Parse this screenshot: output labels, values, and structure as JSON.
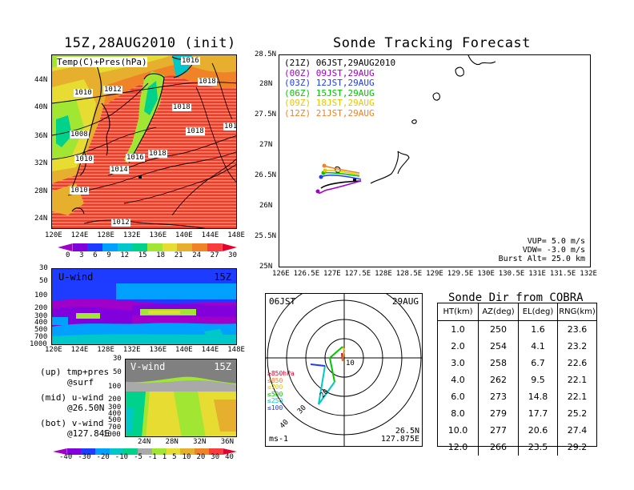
{
  "left_top": {
    "title": "15Z,28AUG2010 (init)",
    "label": "Temp(C)+Pres(hPa)",
    "yticks": [
      "44N",
      "40N",
      "36N",
      "32N",
      "28N",
      "24N"
    ],
    "xticks": [
      "120E",
      "124E",
      "128E",
      "132E",
      "136E",
      "140E",
      "144E",
      "148E"
    ],
    "isobars": [
      "1016",
      "1018",
      "1010",
      "1012",
      "1018",
      "101",
      "1008",
      "1018",
      "1010",
      "1016",
      "1018",
      "1014",
      "1010",
      "1012"
    ]
  },
  "temp_colorbar": {
    "labels": [
      "0",
      "3",
      "6",
      "9",
      "12",
      "15",
      "18",
      "21",
      "24",
      "27",
      "30"
    ],
    "colors": [
      "#a000c8",
      "#8200dc",
      "#1e3cff",
      "#00a0ff",
      "#00c8c8",
      "#00d28c",
      "#a0e632",
      "#e6dc32",
      "#e6af2d",
      "#f08228",
      "#fa3c3c",
      "#e6002a"
    ]
  },
  "u_wind": {
    "label": "U-wind",
    "time": "15Z",
    "yticks": [
      "30",
      "50",
      "100",
      "200",
      "300",
      "400",
      "500",
      "700",
      "1000"
    ],
    "xticks": [
      "120E",
      "124E",
      "128E",
      "132E",
      "136E",
      "140E",
      "144E",
      "148E"
    ]
  },
  "v_wind": {
    "label": "V-wind",
    "time": "15Z",
    "yticks": [
      "30",
      "50",
      "100",
      "200",
      "300",
      "400",
      "500",
      "700",
      "1000"
    ],
    "xticks": [
      "24N",
      "28N",
      "32N",
      "36N"
    ]
  },
  "panel_legend": {
    "up": "(up) tmp+pres",
    "up2": "@surf",
    "mid": "(mid) u-wind",
    "mid2": "@26.50N",
    "bot": "(bot) v-wind",
    "bot2": "@127.84E"
  },
  "wind_colorbar": {
    "labels": [
      "-40",
      "-30",
      "-20",
      "-10",
      "-5",
      "-1",
      "1",
      "5",
      "10",
      "20",
      "30",
      "40"
    ],
    "colors": [
      "#a000c8",
      "#8200dc",
      "#1e3cff",
      "#00a0ff",
      "#00c8c8",
      "#00d28c",
      "#a9a9a9",
      "#a0e632",
      "#e6dc32",
      "#e6af2d",
      "#f08228",
      "#fa3c3c",
      "#e6002a"
    ]
  },
  "track": {
    "title": "Sonde Tracking Forecast",
    "yticks": [
      "28.5N",
      "28N",
      "27.5N",
      "27N",
      "26.5N",
      "26N",
      "25.5N",
      "25N"
    ],
    "xticks": [
      "126E",
      "126.5E",
      "127E",
      "127.5E",
      "128E",
      "128.5E",
      "129E",
      "129.5E",
      "130E",
      "130.5E",
      "131E",
      "131.5E",
      "132E"
    ],
    "legend": [
      {
        "code": "(21Z)",
        "time": "06JST,29AUG2010",
        "color": "#000000"
      },
      {
        "code": "(00Z)",
        "time": "09JST,29AUG",
        "color": "#a000c8"
      },
      {
        "code": "(03Z)",
        "time": "12JST,29AUG",
        "color": "#1e3cff"
      },
      {
        "code": "(06Z)",
        "time": "15JST,29AUG",
        "color": "#00c800"
      },
      {
        "code": "(09Z)",
        "time": "18JST,29AUG",
        "color": "#e6c800"
      },
      {
        "code": "(12Z)",
        "time": "21JST,29AUG",
        "color": "#f08228"
      }
    ],
    "vup": "VUP= 5.0  m/s",
    "vdw": "VDW= -3.0  m/s",
    "burst": "Burst Alt= 25.0  km"
  },
  "polar": {
    "time_left": "06JST",
    "date_right": "29AUG",
    "ring_labels": [
      "10",
      "20",
      "30",
      "40"
    ],
    "level_labels": [
      {
        "text": "≥850hPa",
        "color": "#e6002a"
      },
      {
        "text": "≤850",
        "color": "#f08228"
      },
      {
        "text": "≤700",
        "color": "#e6c800"
      },
      {
        "text": "≤500",
        "color": "#00c800"
      },
      {
        "text": "≤250",
        "color": "#00c8c8"
      },
      {
        "text": "≤100",
        "color": "#1e3cff"
      }
    ],
    "unit": "ms-1",
    "lat": "26.5N",
    "lon": "127.875E"
  },
  "chart_data": {
    "type": "table",
    "title": "Sonde Dir from COBRA",
    "columns": [
      "HT(km)",
      "AZ(deg)",
      "EL(deg)",
      "RNG(km)"
    ],
    "rows": [
      [
        "1.0",
        "250",
        "1.6",
        "23.6"
      ],
      [
        "2.0",
        "254",
        "4.1",
        "23.2"
      ],
      [
        "3.0",
        "258",
        "6.7",
        "22.6"
      ],
      [
        "4.0",
        "262",
        "9.5",
        "22.1"
      ],
      [
        "6.0",
        "273",
        "14.8",
        "22.1"
      ],
      [
        "8.0",
        "279",
        "17.7",
        "25.2"
      ],
      [
        "10.0",
        "277",
        "20.6",
        "27.4"
      ],
      [
        "12.0",
        "266",
        "23.5",
        "29.2"
      ]
    ]
  }
}
